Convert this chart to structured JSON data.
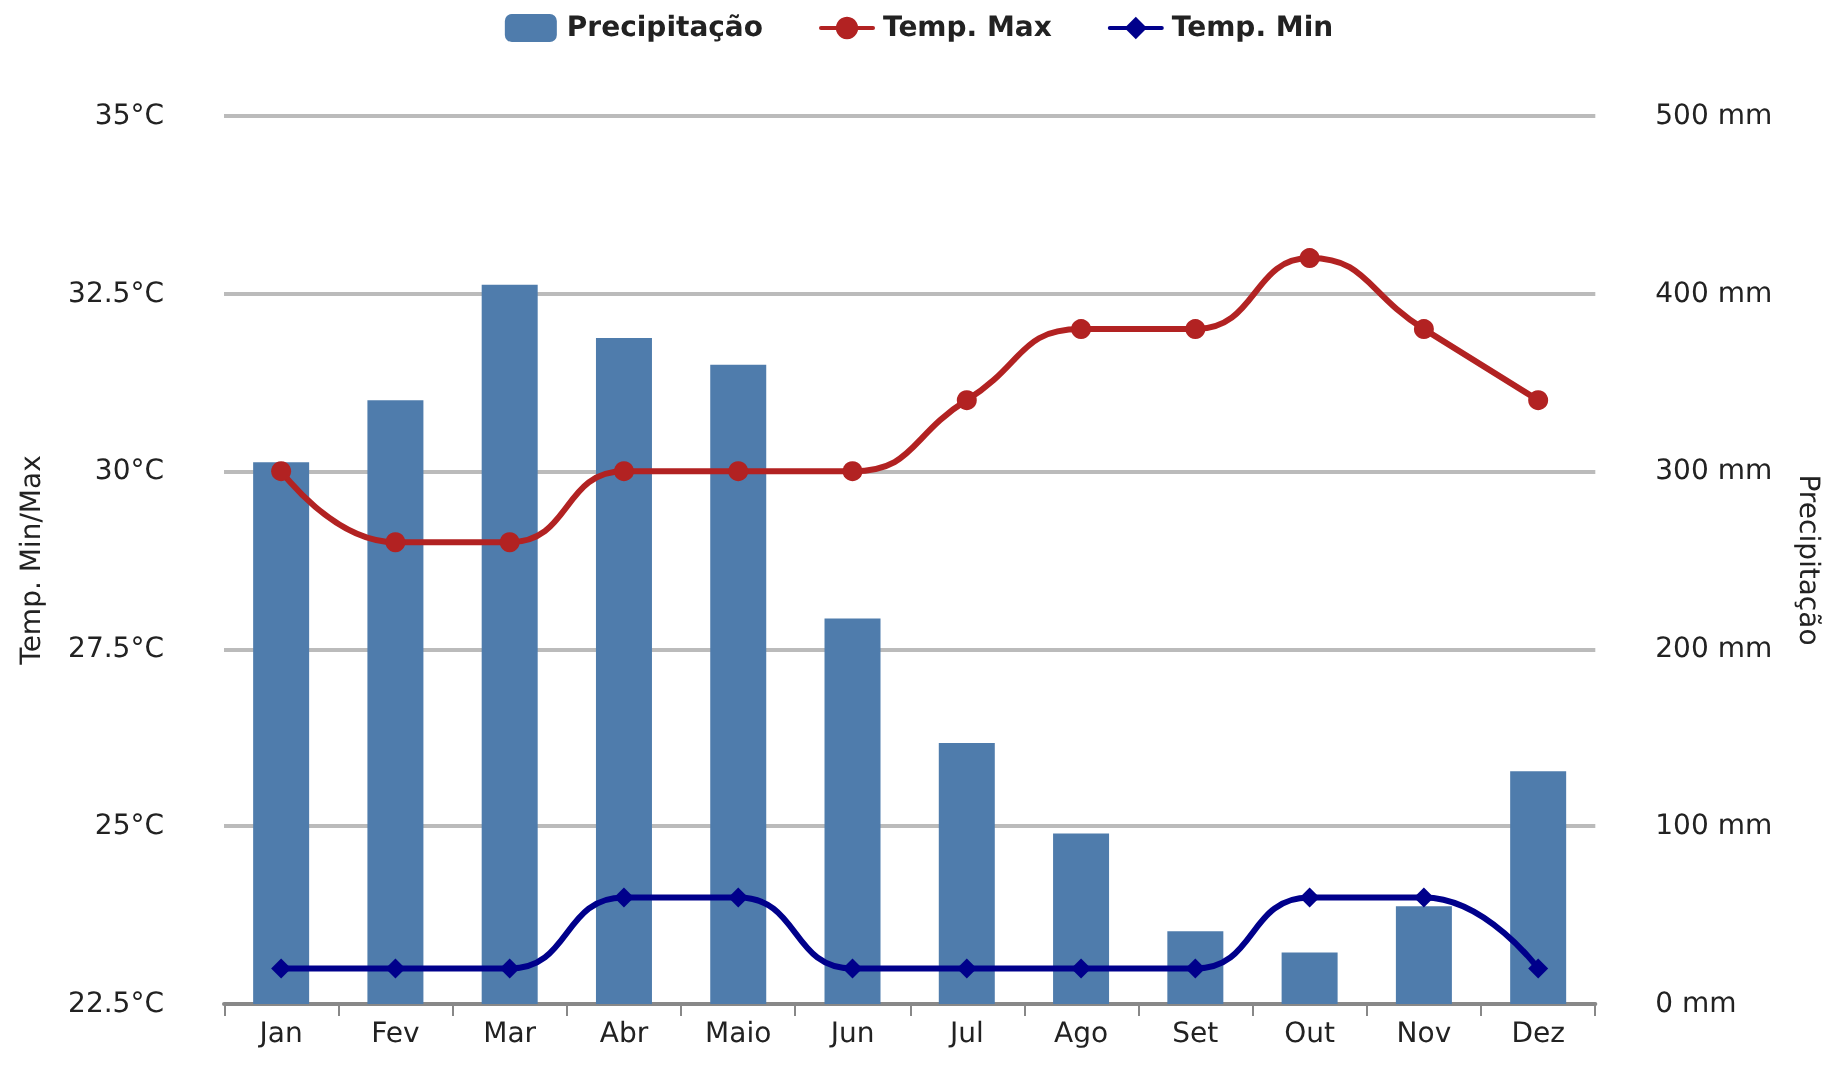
{
  "chart_data": {
    "type": "line",
    "categories": [
      "Jan",
      "Fev",
      "Mar",
      "Abr",
      "Maio",
      "Jun",
      "Jul",
      "Ago",
      "Set",
      "Out",
      "Nov",
      "Dez"
    ],
    "series": [
      {
        "name": "Precipitação",
        "type": "bar",
        "axis": "y2",
        "color": "#4f7cac",
        "values": [
          305,
          340,
          405,
          375,
          360,
          217,
          147,
          96,
          41,
          29,
          55,
          131
        ]
      },
      {
        "name": "Temp. Max",
        "marker": "circle",
        "color": "#b22222",
        "values": [
          30,
          29,
          29,
          30,
          30,
          30,
          31,
          32,
          32,
          33,
          32,
          31
        ]
      },
      {
        "name": "Temp. Min",
        "marker": "diamond",
        "color": "#00008b",
        "values": [
          23,
          23,
          23,
          24,
          24,
          23,
          23,
          23,
          23,
          24,
          24,
          23
        ]
      }
    ],
    "ylabel": "Temp. Min/Max",
    "y2label": "Precipitação",
    "ylim": [
      22.5,
      35
    ],
    "yticks": [
      {
        "value": 22.5,
        "label": "22.5°C"
      },
      {
        "value": 25,
        "label": "25°C"
      },
      {
        "value": 27.5,
        "label": "27.5°C"
      },
      {
        "value": 30,
        "label": "30°C"
      },
      {
        "value": 32.5,
        "label": "32.5°C"
      },
      {
        "value": 35,
        "label": "35°C"
      }
    ],
    "y2lim": [
      0,
      500
    ],
    "y2ticks": [
      {
        "value": 0,
        "label": "0 mm"
      },
      {
        "value": 100,
        "label": "100 mm"
      },
      {
        "value": 200,
        "label": "200 mm"
      },
      {
        "value": 300,
        "label": "300 mm"
      },
      {
        "value": 400,
        "label": "400 mm"
      },
      {
        "value": 500,
        "label": "500 mm"
      }
    ],
    "grid": "y",
    "legend": "top",
    "line_style": "solid"
  }
}
